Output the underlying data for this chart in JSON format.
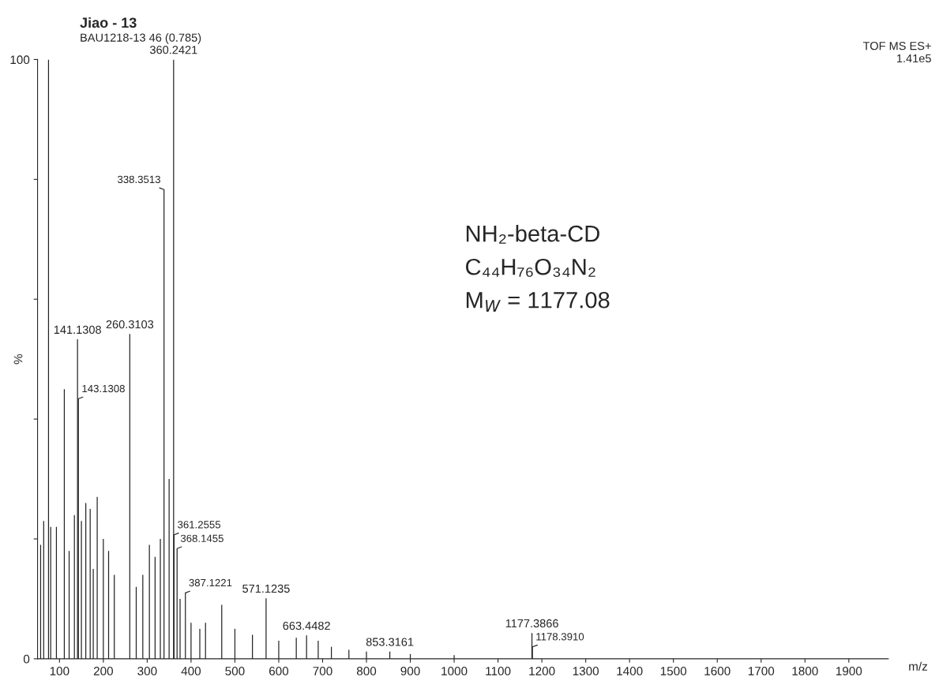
{
  "chart_data": {
    "type": "bar",
    "title": "Jiao - 13",
    "subtitle": "BAU1218-13 46 (0.785)",
    "xlabel": "m/z",
    "ylabel": "%",
    "annotations": [
      "TOF MS ES+",
      "1.41e5",
      "NH₂-beta-CD",
      "C₄₄H₇₆O₃₄N₂",
      "M$_{W}$ = 1177.08",
      {
        "text": "141.1308",
        "x": 141.1308,
        "y": 53.3
      },
      {
        "text": "143.1308",
        "x": 143.1308,
        "y": 43.4
      },
      {
        "text": "260.3103",
        "x": 260.3103,
        "y": 54.2
      },
      {
        "text": "338.3513",
        "x": 338.3513,
        "y": 78.3
      },
      {
        "text": "360.2421",
        "x": 360.2421,
        "y": 100
      },
      {
        "text": "361.2555",
        "x": 361.2555,
        "y": 20.7
      },
      {
        "text": "368.1455",
        "x": 368.1455,
        "y": 18.4
      },
      {
        "text": "387.1221",
        "x": 387.1221,
        "y": 11
      },
      {
        "text": "571.1235",
        "x": 571.1235,
        "y": 10.1
      },
      {
        "text": "663.4482",
        "x": 663.4482,
        "y": 3.9
      },
      {
        "text": "853.3161",
        "x": 853.3161,
        "y": 1.2
      },
      {
        "text": "1177.3866",
        "x": 1177.3866,
        "y": 4.3
      },
      {
        "text": "1178.3910",
        "x": 1178.391,
        "y": 2.0
      }
    ],
    "x": [
      57,
      64,
      75,
      80,
      93,
      111,
      122,
      134,
      141.1308,
      143.1308,
      150,
      160,
      170,
      177,
      186,
      200,
      212,
      225,
      260.3103,
      275,
      290,
      305,
      318,
      330,
      338.3513,
      350,
      360.2421,
      361.2555,
      368.1455,
      375,
      387.1221,
      400,
      420,
      433,
      470,
      500,
      540,
      571.1235,
      600,
      640,
      663.4482,
      690,
      720,
      760,
      800,
      853.3161,
      900,
      1000,
      1177.3866,
      1178.391
    ],
    "values": [
      19,
      23,
      100,
      22,
      22,
      45,
      18,
      24,
      53.3,
      43.4,
      23,
      26,
      25,
      15,
      27,
      20,
      18,
      14,
      54.2,
      12,
      14,
      19,
      17,
      20,
      78.3,
      30,
      100,
      20.7,
      18.4,
      10,
      11,
      6,
      5,
      6,
      9,
      5,
      4,
      10.1,
      3,
      3.5,
      3.9,
      3,
      2,
      1.5,
      1.2,
      1.2,
      0.8,
      0.6,
      4.3,
      2.0
    ],
    "color": "#222222",
    "xlim": [
      50,
      1990
    ],
    "xticks": [
      100,
      200,
      300,
      400,
      500,
      600,
      700,
      800,
      900,
      1000,
      1100,
      1200,
      1300,
      1400,
      1500,
      1600,
      1700,
      1800,
      1900
    ],
    "ylim": [
      0,
      100
    ],
    "yticks": [
      0,
      {
        "value": 20,
        "label": null
      },
      {
        "value": 40,
        "label": null
      },
      {
        "value": 60,
        "label": null
      },
      {
        "value": 80,
        "label": null
      },
      100
    ],
    "grid": false,
    "legend": false
  }
}
